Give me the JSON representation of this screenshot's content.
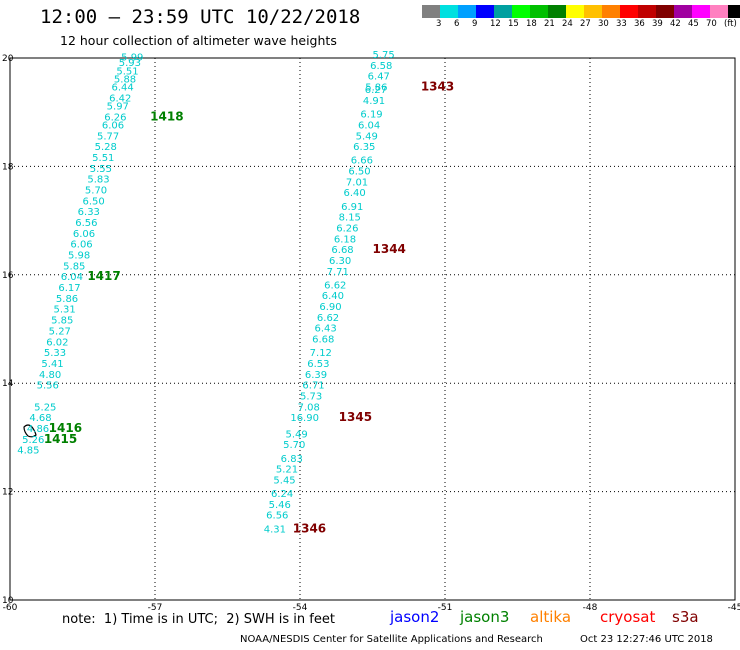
{
  "header": {
    "title": "12:00 – 23:59 UTC 10/22/2018",
    "subtitle": "12 hour collection of altimeter wave heights"
  },
  "legend": {
    "colors": [
      "#808080",
      "#00e0e0",
      "#00a0ff",
      "#0000ff",
      "#00a0a0",
      "#00ff00",
      "#00c000",
      "#008000",
      "#ffff00",
      "#ffc000",
      "#ff8000",
      "#ff0000",
      "#c00000",
      "#800000",
      "#a000a0",
      "#ff00ff",
      "#ff80c0",
      "#000000"
    ],
    "labels": [
      "3",
      "6",
      "9",
      "12",
      "15",
      "18",
      "21",
      "24",
      "27",
      "30",
      "33",
      "36",
      "39",
      "42",
      "45",
      "70",
      "(ft)"
    ]
  },
  "chart_data": {
    "type": "scatter",
    "xlim": [
      -60,
      -45
    ],
    "ylim": [
      10,
      20
    ],
    "x_ticks": [
      "-60",
      "-57",
      "-54",
      "-51",
      "-48",
      "-45"
    ],
    "y_ticks": [
      "10",
      "12",
      "14",
      "16",
      "18",
      "20"
    ],
    "grid": true,
    "series": [
      {
        "name": "jason3",
        "color": "#00cccc",
        "x": [
          -59.9,
          -59.3,
          -59.4
        ],
        "y": [
          12.7,
          12.7,
          12.9
        ],
        "values": [
          "4.85",
          "5.26",
          "4.86"
        ]
      }
    ],
    "swh": [
      {
        "v": "5.99",
        "x": -57.7,
        "y": 19.95
      },
      {
        "v": "5.93",
        "x": -57.75,
        "y": 19.85
      },
      {
        "v": "5.51",
        "x": -57.8,
        "y": 19.7
      },
      {
        "v": "5.88",
        "x": -57.85,
        "y": 19.55
      },
      {
        "v": "6.44",
        "x": -57.9,
        "y": 19.4
      },
      {
        "v": "6.42",
        "x": -57.95,
        "y": 19.2
      },
      {
        "v": "5.97",
        "x": -58.0,
        "y": 19.05
      },
      {
        "v": "6.26",
        "x": -58.05,
        "y": 18.85
      },
      {
        "v": "6.06",
        "x": -58.1,
        "y": 18.7
      },
      {
        "v": "5.77",
        "x": -58.2,
        "y": 18.5
      },
      {
        "v": "5.28",
        "x": -58.25,
        "y": 18.3
      },
      {
        "v": "5.51",
        "x": -58.3,
        "y": 18.1
      },
      {
        "v": "5.55",
        "x": -58.35,
        "y": 17.9
      },
      {
        "v": "5.83",
        "x": -58.4,
        "y": 17.7
      },
      {
        "v": "5.70",
        "x": -58.45,
        "y": 17.5
      },
      {
        "v": "6.50",
        "x": -58.5,
        "y": 17.3
      },
      {
        "v": "6.33",
        "x": -58.6,
        "y": 17.1
      },
      {
        "v": "6.56",
        "x": -58.65,
        "y": 16.9
      },
      {
        "v": "6.06",
        "x": -58.7,
        "y": 16.7
      },
      {
        "v": "6.06",
        "x": -58.75,
        "y": 16.5
      },
      {
        "v": "5.98",
        "x": -58.8,
        "y": 16.3
      },
      {
        "v": "5.85",
        "x": -58.9,
        "y": 16.1
      },
      {
        "v": "6.04",
        "x": -58.95,
        "y": 15.9
      },
      {
        "v": "6.17",
        "x": -59.0,
        "y": 15.7
      },
      {
        "v": "5.86",
        "x": -59.05,
        "y": 15.5
      },
      {
        "v": "5.31",
        "x": -59.1,
        "y": 15.3
      },
      {
        "v": "5.85",
        "x": -59.15,
        "y": 15.1
      },
      {
        "v": "5.27",
        "x": -59.2,
        "y": 14.9
      },
      {
        "v": "6.02",
        "x": -59.25,
        "y": 14.7
      },
      {
        "v": "5.33",
        "x": -59.3,
        "y": 14.5
      },
      {
        "v": "5.41",
        "x": -59.35,
        "y": 14.3
      },
      {
        "v": "4.80",
        "x": -59.4,
        "y": 14.1
      },
      {
        "v": "5.56",
        "x": -59.45,
        "y": 13.9
      },
      {
        "v": "5.25",
        "x": -59.5,
        "y": 13.5
      },
      {
        "v": "4.68",
        "x": -59.6,
        "y": 13.3
      },
      {
        "v": "4.86",
        "x": -59.65,
        "y": 13.1
      },
      {
        "v": "5.26",
        "x": -59.75,
        "y": 12.9
      },
      {
        "v": "4.85",
        "x": -59.85,
        "y": 12.7
      },
      {
        "v": "5.75",
        "x": -52.5,
        "y": 20.0
      },
      {
        "v": "6.58",
        "x": -52.55,
        "y": 19.8
      },
      {
        "v": "6.47",
        "x": -52.6,
        "y": 19.6
      },
      {
        "v": "5.86",
        "x": -52.65,
        "y": 19.4
      },
      {
        "v": "6.27",
        "x": -52.66,
        "y": 19.35
      },
      {
        "v": "4.91",
        "x": -52.7,
        "y": 19.15
      },
      {
        "v": "6.19",
        "x": -52.75,
        "y": 18.9
      },
      {
        "v": "6.04",
        "x": -52.8,
        "y": 18.7
      },
      {
        "v": "5.49",
        "x": -52.85,
        "y": 18.5
      },
      {
        "v": "6.35",
        "x": -52.9,
        "y": 18.3
      },
      {
        "v": "6.66",
        "x": -52.95,
        "y": 18.05
      },
      {
        "v": "6.50",
        "x": -53.0,
        "y": 17.85
      },
      {
        "v": "7.01",
        "x": -53.05,
        "y": 17.65
      },
      {
        "v": "6.40",
        "x": -53.1,
        "y": 17.45
      },
      {
        "v": "6.91",
        "x": -53.15,
        "y": 17.2
      },
      {
        "v": "8.15",
        "x": -53.2,
        "y": 17.0
      },
      {
        "v": "6.26",
        "x": -53.25,
        "y": 16.8
      },
      {
        "v": "6.18",
        "x": -53.3,
        "y": 16.6
      },
      {
        "v": "6.68",
        "x": -53.35,
        "y": 16.4
      },
      {
        "v": "6.30",
        "x": -53.4,
        "y": 16.2
      },
      {
        "v": "7.71",
        "x": -53.45,
        "y": 16.0
      },
      {
        "v": "6.62",
        "x": -53.5,
        "y": 15.75
      },
      {
        "v": "6.40",
        "x": -53.55,
        "y": 15.55
      },
      {
        "v": "6.90",
        "x": -53.6,
        "y": 15.35
      },
      {
        "v": "6.62",
        "x": -53.65,
        "y": 15.15
      },
      {
        "v": "6.43",
        "x": -53.7,
        "y": 14.95
      },
      {
        "v": "6.68",
        "x": -53.75,
        "y": 14.75
      },
      {
        "v": "7.12",
        "x": -53.8,
        "y": 14.5
      },
      {
        "v": "6.53",
        "x": -53.85,
        "y": 14.3
      },
      {
        "v": "6.39",
        "x": -53.9,
        "y": 14.1
      },
      {
        "v": "6.71",
        "x": -53.95,
        "y": 13.9
      },
      {
        "v": "5.73",
        "x": -54.0,
        "y": 13.7
      },
      {
        "v": "7.08",
        "x": -54.05,
        "y": 13.5
      },
      {
        "v": "16.90",
        "x": -54.2,
        "y": 13.3
      },
      {
        "v": "5.49",
        "x": -54.3,
        "y": 13.0
      },
      {
        "v": "5.70",
        "x": -54.35,
        "y": 12.8
      },
      {
        "v": "6.83",
        "x": -54.4,
        "y": 12.55
      },
      {
        "v": "5.21",
        "x": -54.5,
        "y": 12.35
      },
      {
        "v": "5.45",
        "x": -54.55,
        "y": 12.15
      },
      {
        "v": "6.24",
        "x": -54.6,
        "y": 11.9
      },
      {
        "v": "5.46",
        "x": -54.65,
        "y": 11.7
      },
      {
        "v": "6.56",
        "x": -54.7,
        "y": 11.5
      },
      {
        "v": "4.31",
        "x": -54.75,
        "y": 11.25
      }
    ],
    "passes": [
      {
        "label": "1418",
        "color": "#008000",
        "x": -57.1,
        "y": 18.85
      },
      {
        "label": "1417",
        "color": "#008000",
        "x": -58.4,
        "y": 15.9
      },
      {
        "label": "1416",
        "color": "#008000",
        "x": -59.2,
        "y": 13.1
      },
      {
        "label": "1415",
        "color": "#008000",
        "x": -59.3,
        "y": 12.9
      },
      {
        "label": "1343",
        "color": "#800000",
        "x": -51.5,
        "y": 19.4
      },
      {
        "label": "1344",
        "color": "#800000",
        "x": -52.5,
        "y": 16.4
      },
      {
        "label": "1345",
        "color": "#800000",
        "x": -53.2,
        "y": 13.3
      },
      {
        "label": "1346",
        "color": "#800000",
        "x": -54.15,
        "y": 11.25
      }
    ]
  },
  "footer": {
    "note": "note:  1) Time is in UTC;  2) SWH is in feet",
    "satellites": [
      {
        "name": "jason2",
        "color": "#0000ff"
      },
      {
        "name": "jason3",
        "color": "#008000"
      },
      {
        "name": "altika",
        "color": "#ff8000"
      },
      {
        "name": "cryosat",
        "color": "#ff0000"
      },
      {
        "name": "s3a",
        "color": "#800000"
      }
    ],
    "credit": "NOAA/NESDIS Center for Satellite Applications and Research",
    "generated": "Oct 23 12:27:46 UTC 2018"
  }
}
